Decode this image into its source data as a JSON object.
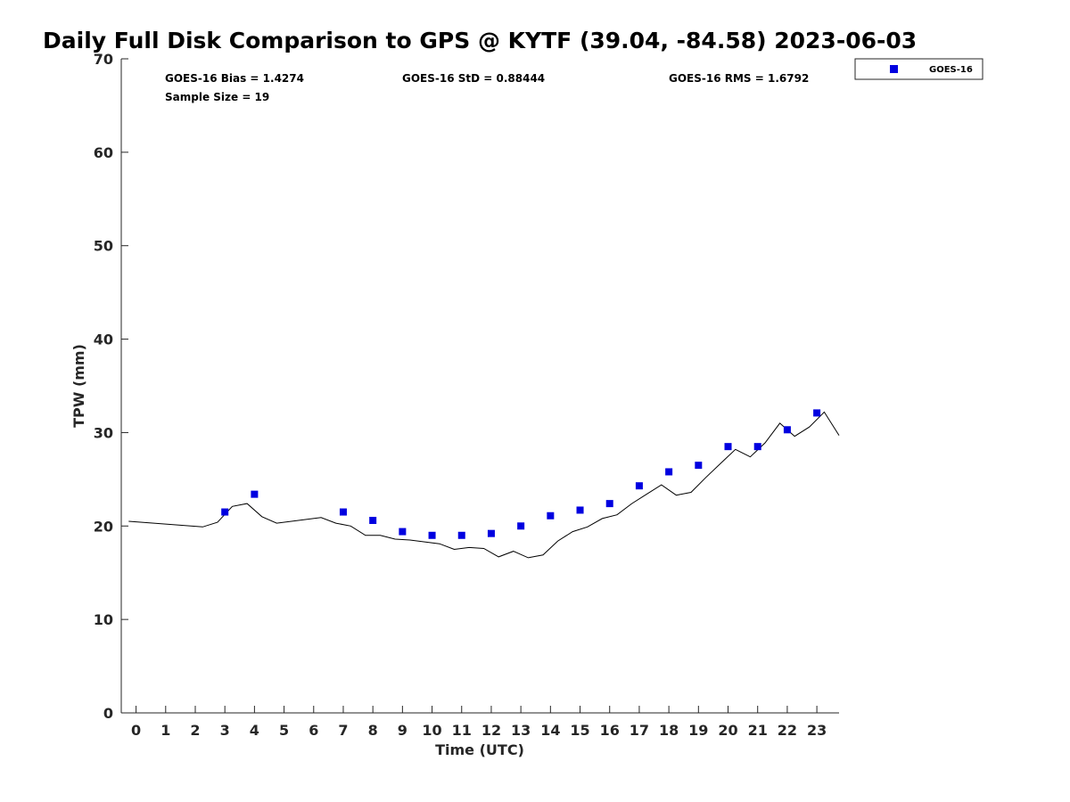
{
  "chart_data": {
    "type": "line",
    "title": "Daily Full Disk Comparison to GPS @ KYTF (39.04, -84.58) 2023-06-03",
    "xlabel": "Time (UTC)",
    "ylabel": "TPW (mm)",
    "xlim": [
      -0.5,
      23.75
    ],
    "ylim": [
      0,
      70
    ],
    "xticks": [
      0,
      1,
      2,
      3,
      4,
      5,
      6,
      7,
      8,
      9,
      10,
      11,
      12,
      13,
      14,
      15,
      16,
      17,
      18,
      19,
      20,
      21,
      22,
      23
    ],
    "yticks": [
      0,
      10,
      20,
      30,
      40,
      50,
      60,
      70
    ],
    "grid": false,
    "legend": {
      "placement": "top-right (outside plot)",
      "entries": [
        "GOES-16"
      ]
    },
    "stats": {
      "bias": "GOES-16 Bias = 1.4274",
      "std": "GOES-16 StD = 0.88444",
      "rms": "GOES-16 RMS = 1.6792",
      "sample": "Sample Size = 19"
    },
    "series": [
      {
        "type": "line",
        "color": "#000000",
        "x": [
          -0.25,
          2.25,
          2.75,
          3.25,
          3.75,
          4.25,
          4.75,
          6.25,
          6.75,
          7.25,
          7.75,
          8.25,
          8.75,
          9.25,
          9.75,
          10.25,
          10.75,
          11.25,
          11.75,
          12.25,
          12.75,
          13.25,
          13.75,
          14.25,
          14.75,
          15.25,
          15.75,
          16.25,
          16.75,
          17.25,
          17.75,
          18.25,
          18.75,
          19.25,
          19.75,
          20.25,
          20.75,
          21.25,
          21.75,
          22.25,
          22.75,
          23.25,
          23.75
        ],
        "y": [
          20.5,
          19.9,
          20.4,
          22.1,
          22.4,
          21.0,
          20.3,
          20.9,
          20.3,
          20.0,
          19.0,
          19.0,
          18.6,
          18.5,
          18.3,
          18.1,
          17.5,
          17.7,
          17.6,
          16.7,
          17.3,
          16.6,
          16.9,
          18.4,
          19.4,
          19.9,
          20.8,
          21.2,
          22.4,
          23.4,
          24.4,
          23.3,
          23.6,
          25.2,
          26.7,
          28.2,
          27.4,
          28.9,
          31.0,
          29.6,
          30.6,
          32.2,
          29.7
        ]
      },
      {
        "name": "GOES-16",
        "type": "scatter",
        "marker": "square",
        "color": "#0000e0",
        "x": [
          3,
          4,
          7,
          8,
          9,
          10,
          11,
          12,
          13,
          14,
          15,
          16,
          17,
          18,
          19,
          20,
          21,
          22,
          23
        ],
        "y": [
          21.5,
          23.4,
          21.5,
          20.6,
          19.4,
          19.0,
          19.0,
          19.2,
          20.0,
          21.1,
          21.7,
          22.4,
          24.3,
          25.8,
          26.5,
          28.5,
          28.5,
          30.3,
          32.1
        ]
      }
    ]
  }
}
